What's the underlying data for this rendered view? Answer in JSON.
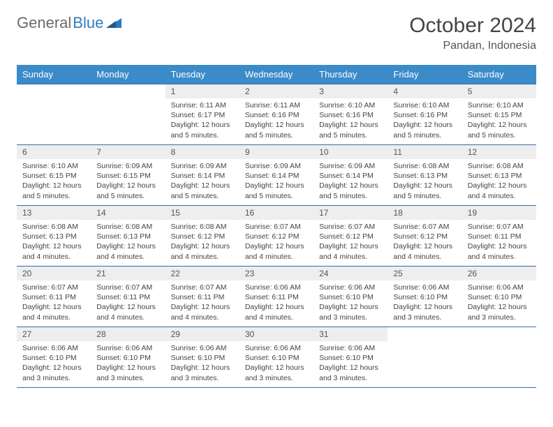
{
  "logo": {
    "part1": "General",
    "part2": "Blue"
  },
  "title": "October 2024",
  "location": "Pandan, Indonesia",
  "colors": {
    "header_bg": "#3b8bc9",
    "header_text": "#ffffff",
    "day_number_bg": "#eeeeee",
    "grid_border": "#2f6fa8",
    "logo_gray": "#6a6a6a",
    "logo_blue": "#2f7bbf"
  },
  "day_headers": [
    "Sunday",
    "Monday",
    "Tuesday",
    "Wednesday",
    "Thursday",
    "Friday",
    "Saturday"
  ],
  "weeks": [
    [
      null,
      null,
      {
        "n": "1",
        "sr": "6:11 AM",
        "ss": "6:17 PM",
        "dl": "12 hours and 5 minutes."
      },
      {
        "n": "2",
        "sr": "6:11 AM",
        "ss": "6:16 PM",
        "dl": "12 hours and 5 minutes."
      },
      {
        "n": "3",
        "sr": "6:10 AM",
        "ss": "6:16 PM",
        "dl": "12 hours and 5 minutes."
      },
      {
        "n": "4",
        "sr": "6:10 AM",
        "ss": "6:16 PM",
        "dl": "12 hours and 5 minutes."
      },
      {
        "n": "5",
        "sr": "6:10 AM",
        "ss": "6:15 PM",
        "dl": "12 hours and 5 minutes."
      }
    ],
    [
      {
        "n": "6",
        "sr": "6:10 AM",
        "ss": "6:15 PM",
        "dl": "12 hours and 5 minutes."
      },
      {
        "n": "7",
        "sr": "6:09 AM",
        "ss": "6:15 PM",
        "dl": "12 hours and 5 minutes."
      },
      {
        "n": "8",
        "sr": "6:09 AM",
        "ss": "6:14 PM",
        "dl": "12 hours and 5 minutes."
      },
      {
        "n": "9",
        "sr": "6:09 AM",
        "ss": "6:14 PM",
        "dl": "12 hours and 5 minutes."
      },
      {
        "n": "10",
        "sr": "6:09 AM",
        "ss": "6:14 PM",
        "dl": "12 hours and 5 minutes."
      },
      {
        "n": "11",
        "sr": "6:08 AM",
        "ss": "6:13 PM",
        "dl": "12 hours and 5 minutes."
      },
      {
        "n": "12",
        "sr": "6:08 AM",
        "ss": "6:13 PM",
        "dl": "12 hours and 4 minutes."
      }
    ],
    [
      {
        "n": "13",
        "sr": "6:08 AM",
        "ss": "6:13 PM",
        "dl": "12 hours and 4 minutes."
      },
      {
        "n": "14",
        "sr": "6:08 AM",
        "ss": "6:13 PM",
        "dl": "12 hours and 4 minutes."
      },
      {
        "n": "15",
        "sr": "6:08 AM",
        "ss": "6:12 PM",
        "dl": "12 hours and 4 minutes."
      },
      {
        "n": "16",
        "sr": "6:07 AM",
        "ss": "6:12 PM",
        "dl": "12 hours and 4 minutes."
      },
      {
        "n": "17",
        "sr": "6:07 AM",
        "ss": "6:12 PM",
        "dl": "12 hours and 4 minutes."
      },
      {
        "n": "18",
        "sr": "6:07 AM",
        "ss": "6:12 PM",
        "dl": "12 hours and 4 minutes."
      },
      {
        "n": "19",
        "sr": "6:07 AM",
        "ss": "6:11 PM",
        "dl": "12 hours and 4 minutes."
      }
    ],
    [
      {
        "n": "20",
        "sr": "6:07 AM",
        "ss": "6:11 PM",
        "dl": "12 hours and 4 minutes."
      },
      {
        "n": "21",
        "sr": "6:07 AM",
        "ss": "6:11 PM",
        "dl": "12 hours and 4 minutes."
      },
      {
        "n": "22",
        "sr": "6:07 AM",
        "ss": "6:11 PM",
        "dl": "12 hours and 4 minutes."
      },
      {
        "n": "23",
        "sr": "6:06 AM",
        "ss": "6:11 PM",
        "dl": "12 hours and 4 minutes."
      },
      {
        "n": "24",
        "sr": "6:06 AM",
        "ss": "6:10 PM",
        "dl": "12 hours and 3 minutes."
      },
      {
        "n": "25",
        "sr": "6:06 AM",
        "ss": "6:10 PM",
        "dl": "12 hours and 3 minutes."
      },
      {
        "n": "26",
        "sr": "6:06 AM",
        "ss": "6:10 PM",
        "dl": "12 hours and 3 minutes."
      }
    ],
    [
      {
        "n": "27",
        "sr": "6:06 AM",
        "ss": "6:10 PM",
        "dl": "12 hours and 3 minutes."
      },
      {
        "n": "28",
        "sr": "6:06 AM",
        "ss": "6:10 PM",
        "dl": "12 hours and 3 minutes."
      },
      {
        "n": "29",
        "sr": "6:06 AM",
        "ss": "6:10 PM",
        "dl": "12 hours and 3 minutes."
      },
      {
        "n": "30",
        "sr": "6:06 AM",
        "ss": "6:10 PM",
        "dl": "12 hours and 3 minutes."
      },
      {
        "n": "31",
        "sr": "6:06 AM",
        "ss": "6:10 PM",
        "dl": "12 hours and 3 minutes."
      },
      null,
      null
    ]
  ],
  "labels": {
    "sunrise": "Sunrise:",
    "sunset": "Sunset:",
    "daylight": "Daylight:"
  }
}
